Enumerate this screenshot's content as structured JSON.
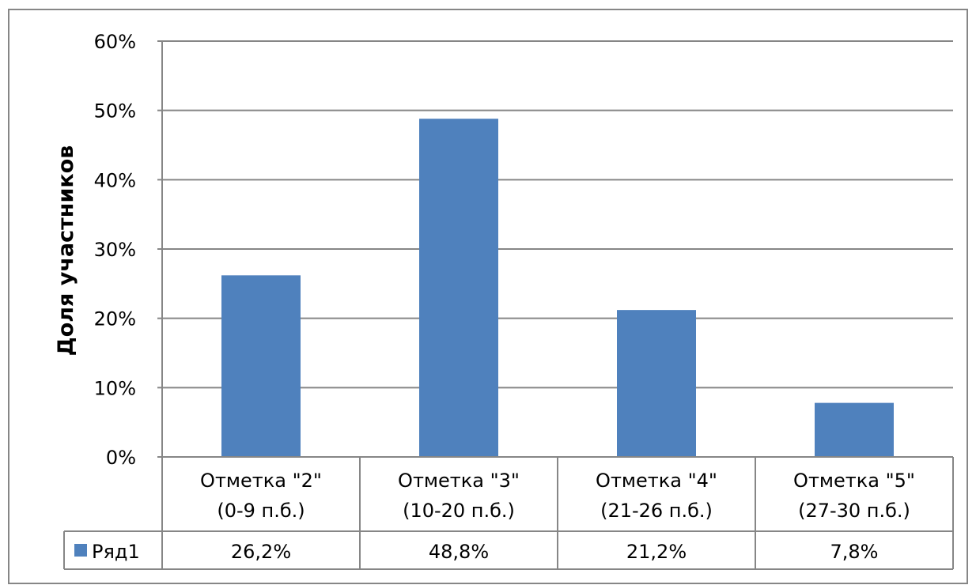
{
  "chart_data": {
    "type": "bar",
    "categories": [
      [
        "Отметка \"2\"",
        "(0-9 п.б.)"
      ],
      [
        "Отметка \"3\"",
        "(10-20 п.б.)"
      ],
      [
        "Отметка \"4\"",
        "(21-26 п.б.)"
      ],
      [
        "Отметка \"5\"",
        "(27-30 п.б.)"
      ]
    ],
    "series": [
      {
        "name": "Ряд1",
        "values": [
          26.2,
          48.8,
          21.2,
          7.8
        ],
        "labels": [
          "26,2%",
          "48,8%",
          "21,2%",
          "7,8%"
        ],
        "color": "#4f81bd"
      }
    ],
    "title": "",
    "xlabel": "",
    "ylabel": "Доля участников",
    "ylim": [
      0,
      60
    ],
    "yticks": [
      0,
      10,
      20,
      30,
      40,
      50,
      60
    ],
    "ytick_labels": [
      "0%",
      "10%",
      "20%",
      "30%",
      "40%",
      "50%",
      "60%"
    ],
    "grid": true,
    "legend": "data-table",
    "colors": {
      "bar": "#4f81bd",
      "grid": "#868686",
      "border": "#868686"
    }
  }
}
